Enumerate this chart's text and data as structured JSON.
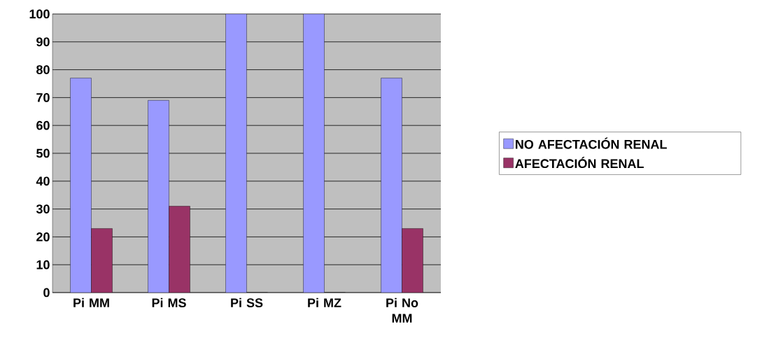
{
  "chart_data": {
    "type": "bar",
    "categories": [
      "Pi MM",
      "Pi MS",
      "Pi SS",
      "Pi MZ",
      "Pi No MM"
    ],
    "series": [
      {
        "name": "NO AFECTACIÓN RENAL",
        "color": "#9999ff",
        "values": [
          77,
          69,
          100,
          100,
          77
        ]
      },
      {
        "name": "AFECTACIÓN RENAL",
        "color": "#993366",
        "values": [
          23,
          31,
          0,
          0,
          23
        ]
      }
    ],
    "ylim": [
      0,
      100
    ],
    "yticks": [
      0,
      10,
      20,
      30,
      40,
      50,
      60,
      70,
      80,
      90,
      100
    ],
    "grid": "y",
    "legend": "right"
  }
}
